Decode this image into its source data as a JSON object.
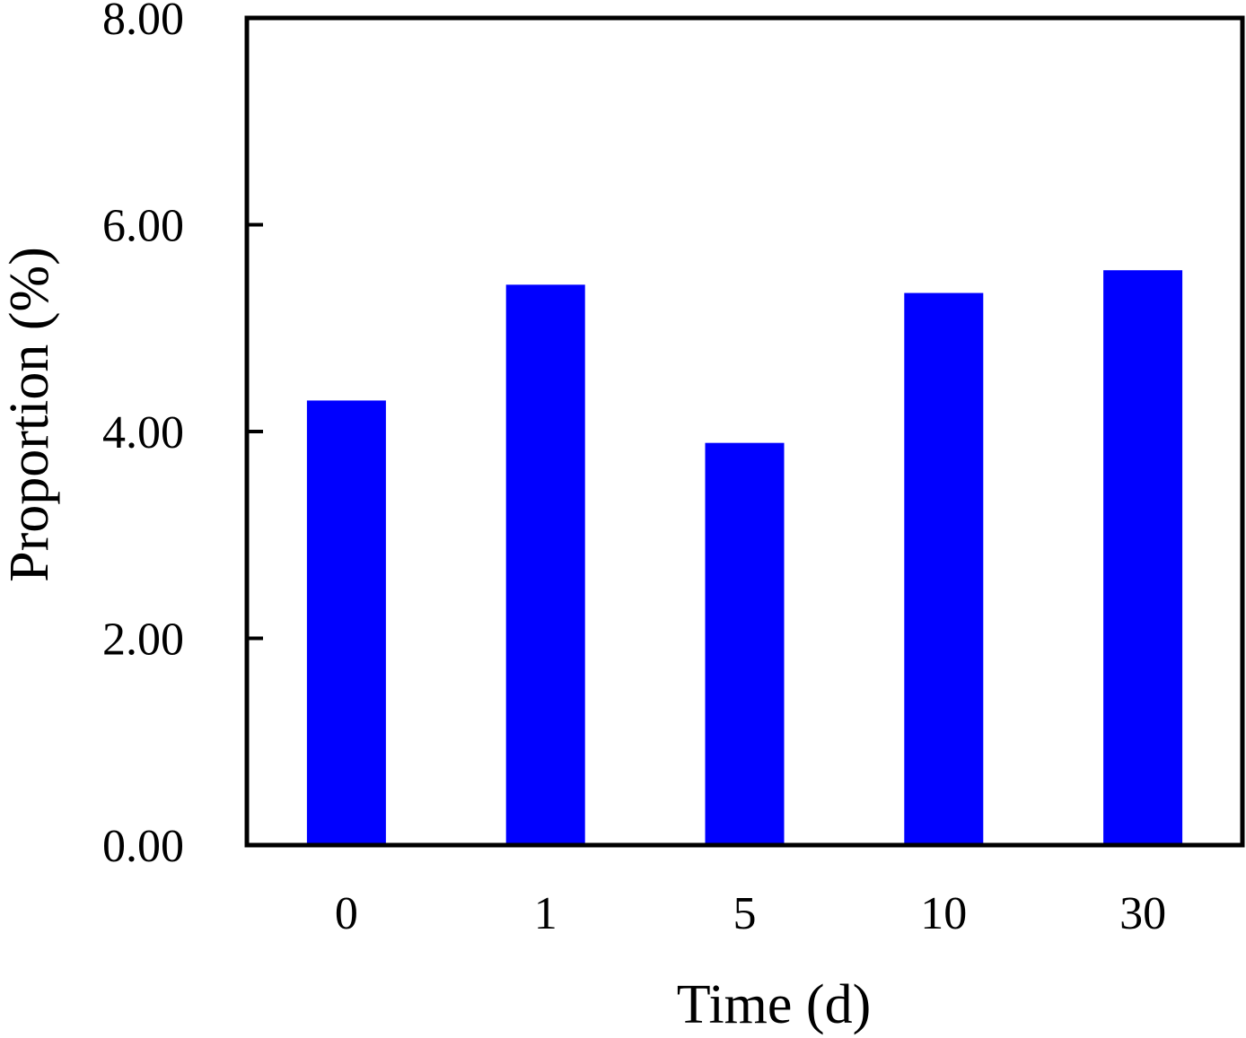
{
  "chart_data": {
    "type": "bar",
    "title": "",
    "xlabel": "Time (d)",
    "ylabel": "Proportion (%)",
    "categories": [
      "0",
      "1",
      "5",
      "10",
      "30"
    ],
    "values": [
      4.3,
      5.42,
      3.89,
      5.34,
      5.56
    ],
    "ylim": [
      0,
      8
    ],
    "yticks": [
      "0.00",
      "2.00",
      "4.00",
      "6.00",
      "8.00"
    ],
    "grid": false,
    "legend": "none",
    "bar_color": "#0000ff"
  }
}
